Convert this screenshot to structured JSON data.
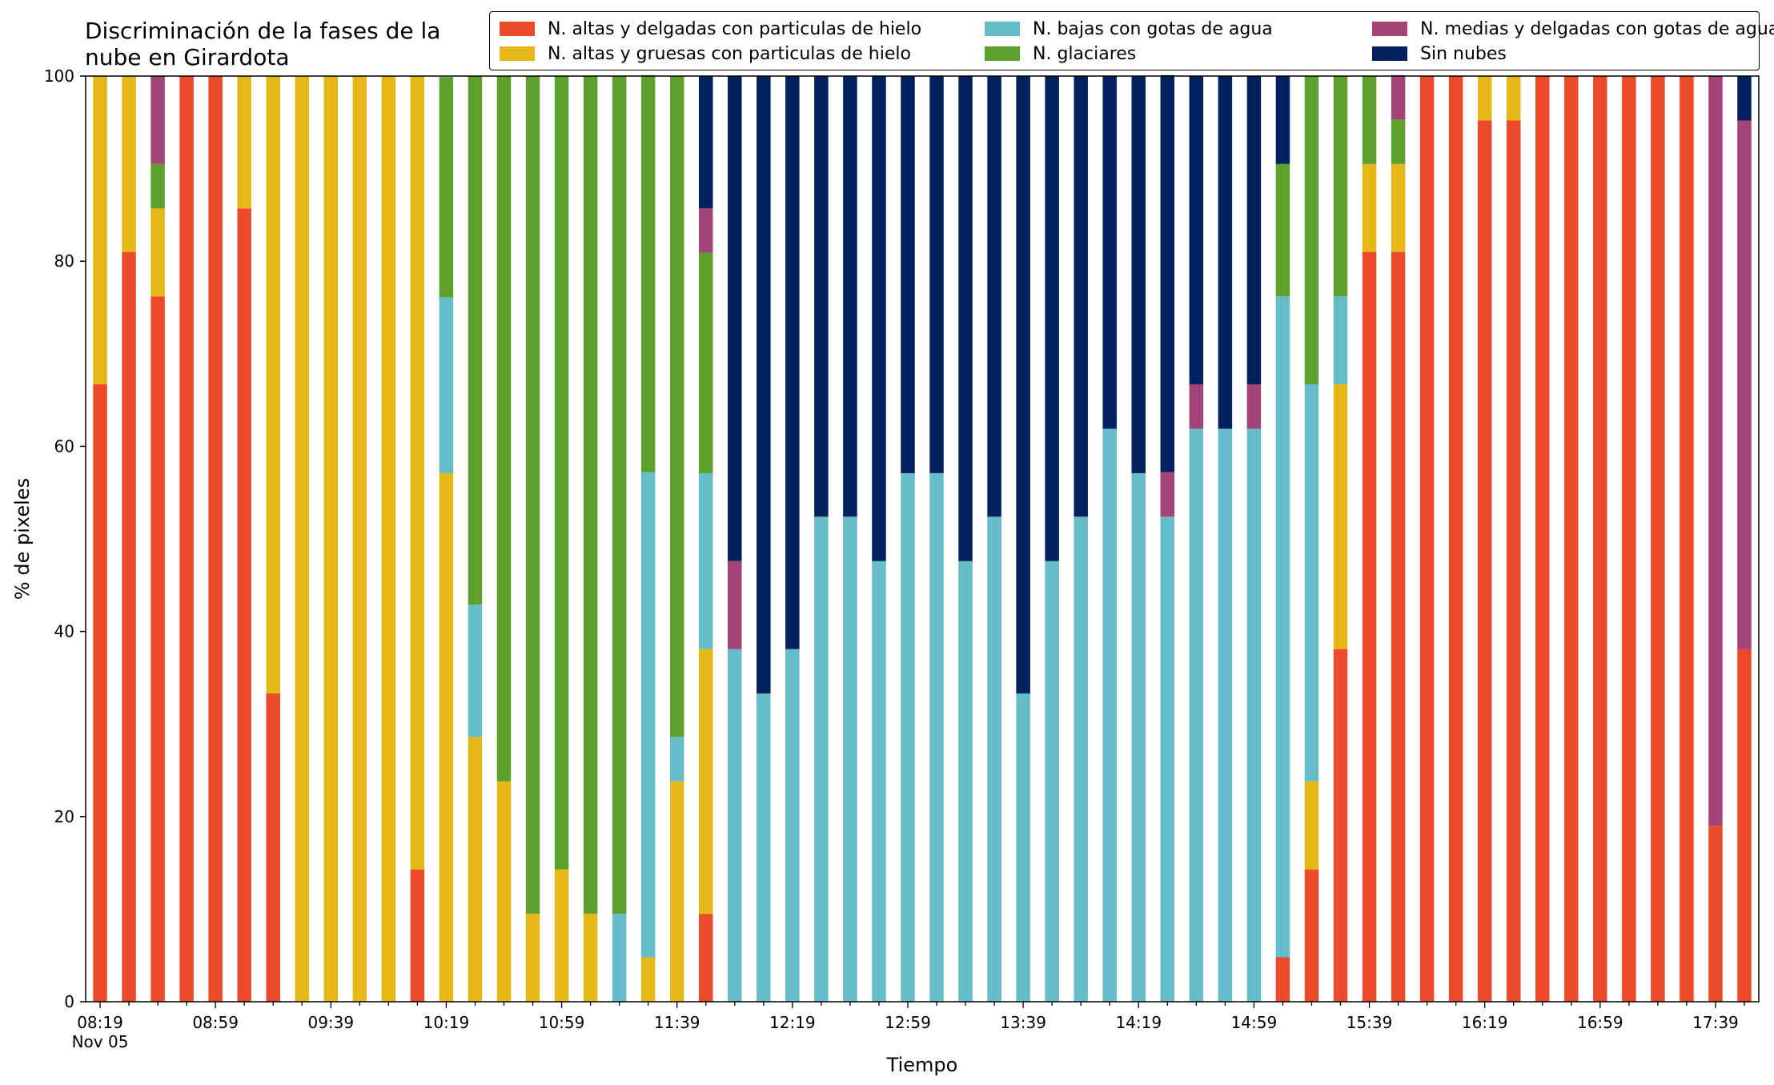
{
  "chart_data": {
    "type": "bar",
    "stacked": true,
    "title": "Discriminación de la fases de la nube en Girardota",
    "title_lines": [
      "Discriminación de la fases de la",
      "nube en Girardota"
    ],
    "xlabel": "Tiempo",
    "ylabel": "% de pixeles",
    "ylim": [
      0,
      100
    ],
    "yticks": [
      0,
      20,
      40,
      60,
      80,
      100
    ],
    "xtick_labels": [
      "08:19",
      "08:59",
      "09:39",
      "10:19",
      "10:59",
      "11:39",
      "12:19",
      "12:59",
      "13:39",
      "14:19",
      "14:59",
      "15:39",
      "16:19",
      "16:59",
      "17:39"
    ],
    "xtick_sublabel": "Nov 05",
    "legend_position": "top-right",
    "grid": false,
    "categories": [
      "08:19",
      "08:29",
      "08:39",
      "08:49",
      "08:59",
      "09:09",
      "09:19",
      "09:29",
      "09:39",
      "09:49",
      "09:59",
      "10:09",
      "10:19",
      "10:29",
      "10:39",
      "10:49",
      "10:59",
      "11:09",
      "11:19",
      "11:29",
      "11:39",
      "11:49",
      "11:59",
      "12:09",
      "12:19",
      "12:29",
      "12:39",
      "12:49",
      "12:59",
      "13:09",
      "13:19",
      "13:29",
      "13:39",
      "13:49",
      "13:59",
      "14:09",
      "14:19",
      "14:29",
      "14:39",
      "14:49",
      "14:59",
      "15:09",
      "15:19",
      "15:29",
      "15:39",
      "15:49",
      "15:59",
      "16:09",
      "16:19",
      "16:29",
      "16:39",
      "16:49",
      "16:59",
      "17:09",
      "17:19",
      "17:29",
      "17:39",
      "17:49"
    ],
    "series": [
      {
        "name": "N. altas y delgadas con particulas de hielo",
        "color": "#ec4b2b",
        "values": [
          66.7,
          81,
          76.2,
          100,
          100,
          85.7,
          33.3,
          0,
          0,
          0,
          0,
          14.3,
          0,
          0,
          0,
          0,
          0,
          0,
          0,
          0,
          0,
          9.5,
          0,
          0,
          0,
          0,
          0,
          0,
          0,
          0,
          0,
          0,
          0,
          0,
          0,
          0,
          0,
          0,
          0,
          0,
          0,
          4.8,
          14.3,
          38.1,
          81,
          81,
          100,
          100,
          95.2,
          95.2,
          100,
          100,
          100,
          100,
          100,
          100,
          19,
          38.1
        ]
      },
      {
        "name": "N. altas y gruesas con particulas de hielo",
        "color": "#e5b717",
        "values": [
          33.3,
          19,
          9.5,
          0,
          0,
          14.3,
          66.7,
          100,
          100,
          100,
          100,
          85.7,
          57.1,
          28.6,
          23.8,
          9.5,
          14.3,
          9.5,
          0,
          4.8,
          23.8,
          28.6,
          0,
          0,
          0,
          0,
          0,
          0,
          0,
          0,
          0,
          0,
          0,
          0,
          0,
          0,
          0,
          0,
          0,
          0,
          0,
          0,
          9.5,
          28.6,
          9.5,
          9.5,
          0,
          0,
          4.8,
          4.8,
          0,
          0,
          0,
          0,
          0,
          0,
          0,
          0
        ]
      },
      {
        "name": "N. bajas con gotas de agua",
        "color": "#64bdc8",
        "values": [
          0,
          0,
          0,
          0,
          0,
          0,
          0,
          0,
          0,
          0,
          0,
          0,
          19,
          14.3,
          0,
          0,
          0,
          0,
          9.5,
          52.4,
          4.8,
          19,
          38.1,
          33.3,
          38.1,
          52.4,
          52.4,
          47.6,
          57.1,
          57.1,
          47.6,
          52.4,
          33.3,
          47.6,
          52.4,
          61.9,
          57.1,
          52.4,
          61.9,
          61.9,
          61.9,
          71.4,
          42.9,
          9.5,
          0,
          0,
          0,
          0,
          0,
          0,
          0,
          0,
          0,
          0,
          0,
          0,
          0,
          0
        ]
      },
      {
        "name": "N. glaciares",
        "color": "#5ea02c",
        "values": [
          0,
          0,
          4.8,
          0,
          0,
          0,
          0,
          0,
          0,
          0,
          0,
          0,
          23.8,
          57.1,
          76.2,
          90.5,
          85.7,
          90.5,
          90.5,
          42.9,
          71.4,
          23.8,
          0,
          0,
          0,
          0,
          0,
          0,
          0,
          0,
          0,
          0,
          0,
          0,
          0,
          0,
          0,
          0,
          0,
          0,
          0,
          14.3,
          33.3,
          23.8,
          9.5,
          4.8,
          0,
          0,
          0,
          0,
          0,
          0,
          0,
          0,
          0,
          0,
          0,
          0
        ]
      },
      {
        "name": "N. medias y delgadas con gotas de agua",
        "color": "#a24477",
        "values": [
          0,
          0,
          9.5,
          0,
          0,
          0,
          0,
          0,
          0,
          0,
          0,
          0,
          0,
          0,
          0,
          0,
          0,
          0,
          0,
          0,
          0,
          4.8,
          9.5,
          0,
          0,
          0,
          0,
          0,
          0,
          0,
          0,
          0,
          0,
          0,
          0,
          0,
          0,
          4.8,
          4.8,
          0,
          4.8,
          0,
          0,
          0,
          0,
          4.8,
          0,
          0,
          0,
          0,
          0,
          0,
          0,
          0,
          0,
          0,
          81,
          57.1
        ]
      },
      {
        "name": "Sin nubes",
        "color": "#03205f",
        "values": [
          0,
          0,
          0,
          0,
          0,
          0,
          0,
          0,
          0,
          0,
          0,
          0,
          0,
          0,
          0,
          0,
          0,
          0,
          0,
          0,
          0,
          14.3,
          52.4,
          66.7,
          61.9,
          47.6,
          47.6,
          52.4,
          42.9,
          42.9,
          52.4,
          47.6,
          66.7,
          52.4,
          47.6,
          38.1,
          42.9,
          42.9,
          33.3,
          38.1,
          33.3,
          9.5,
          0,
          0,
          0,
          0,
          0,
          0,
          0,
          0,
          0,
          0,
          0,
          0,
          0,
          0,
          0,
          4.8
        ]
      }
    ]
  }
}
